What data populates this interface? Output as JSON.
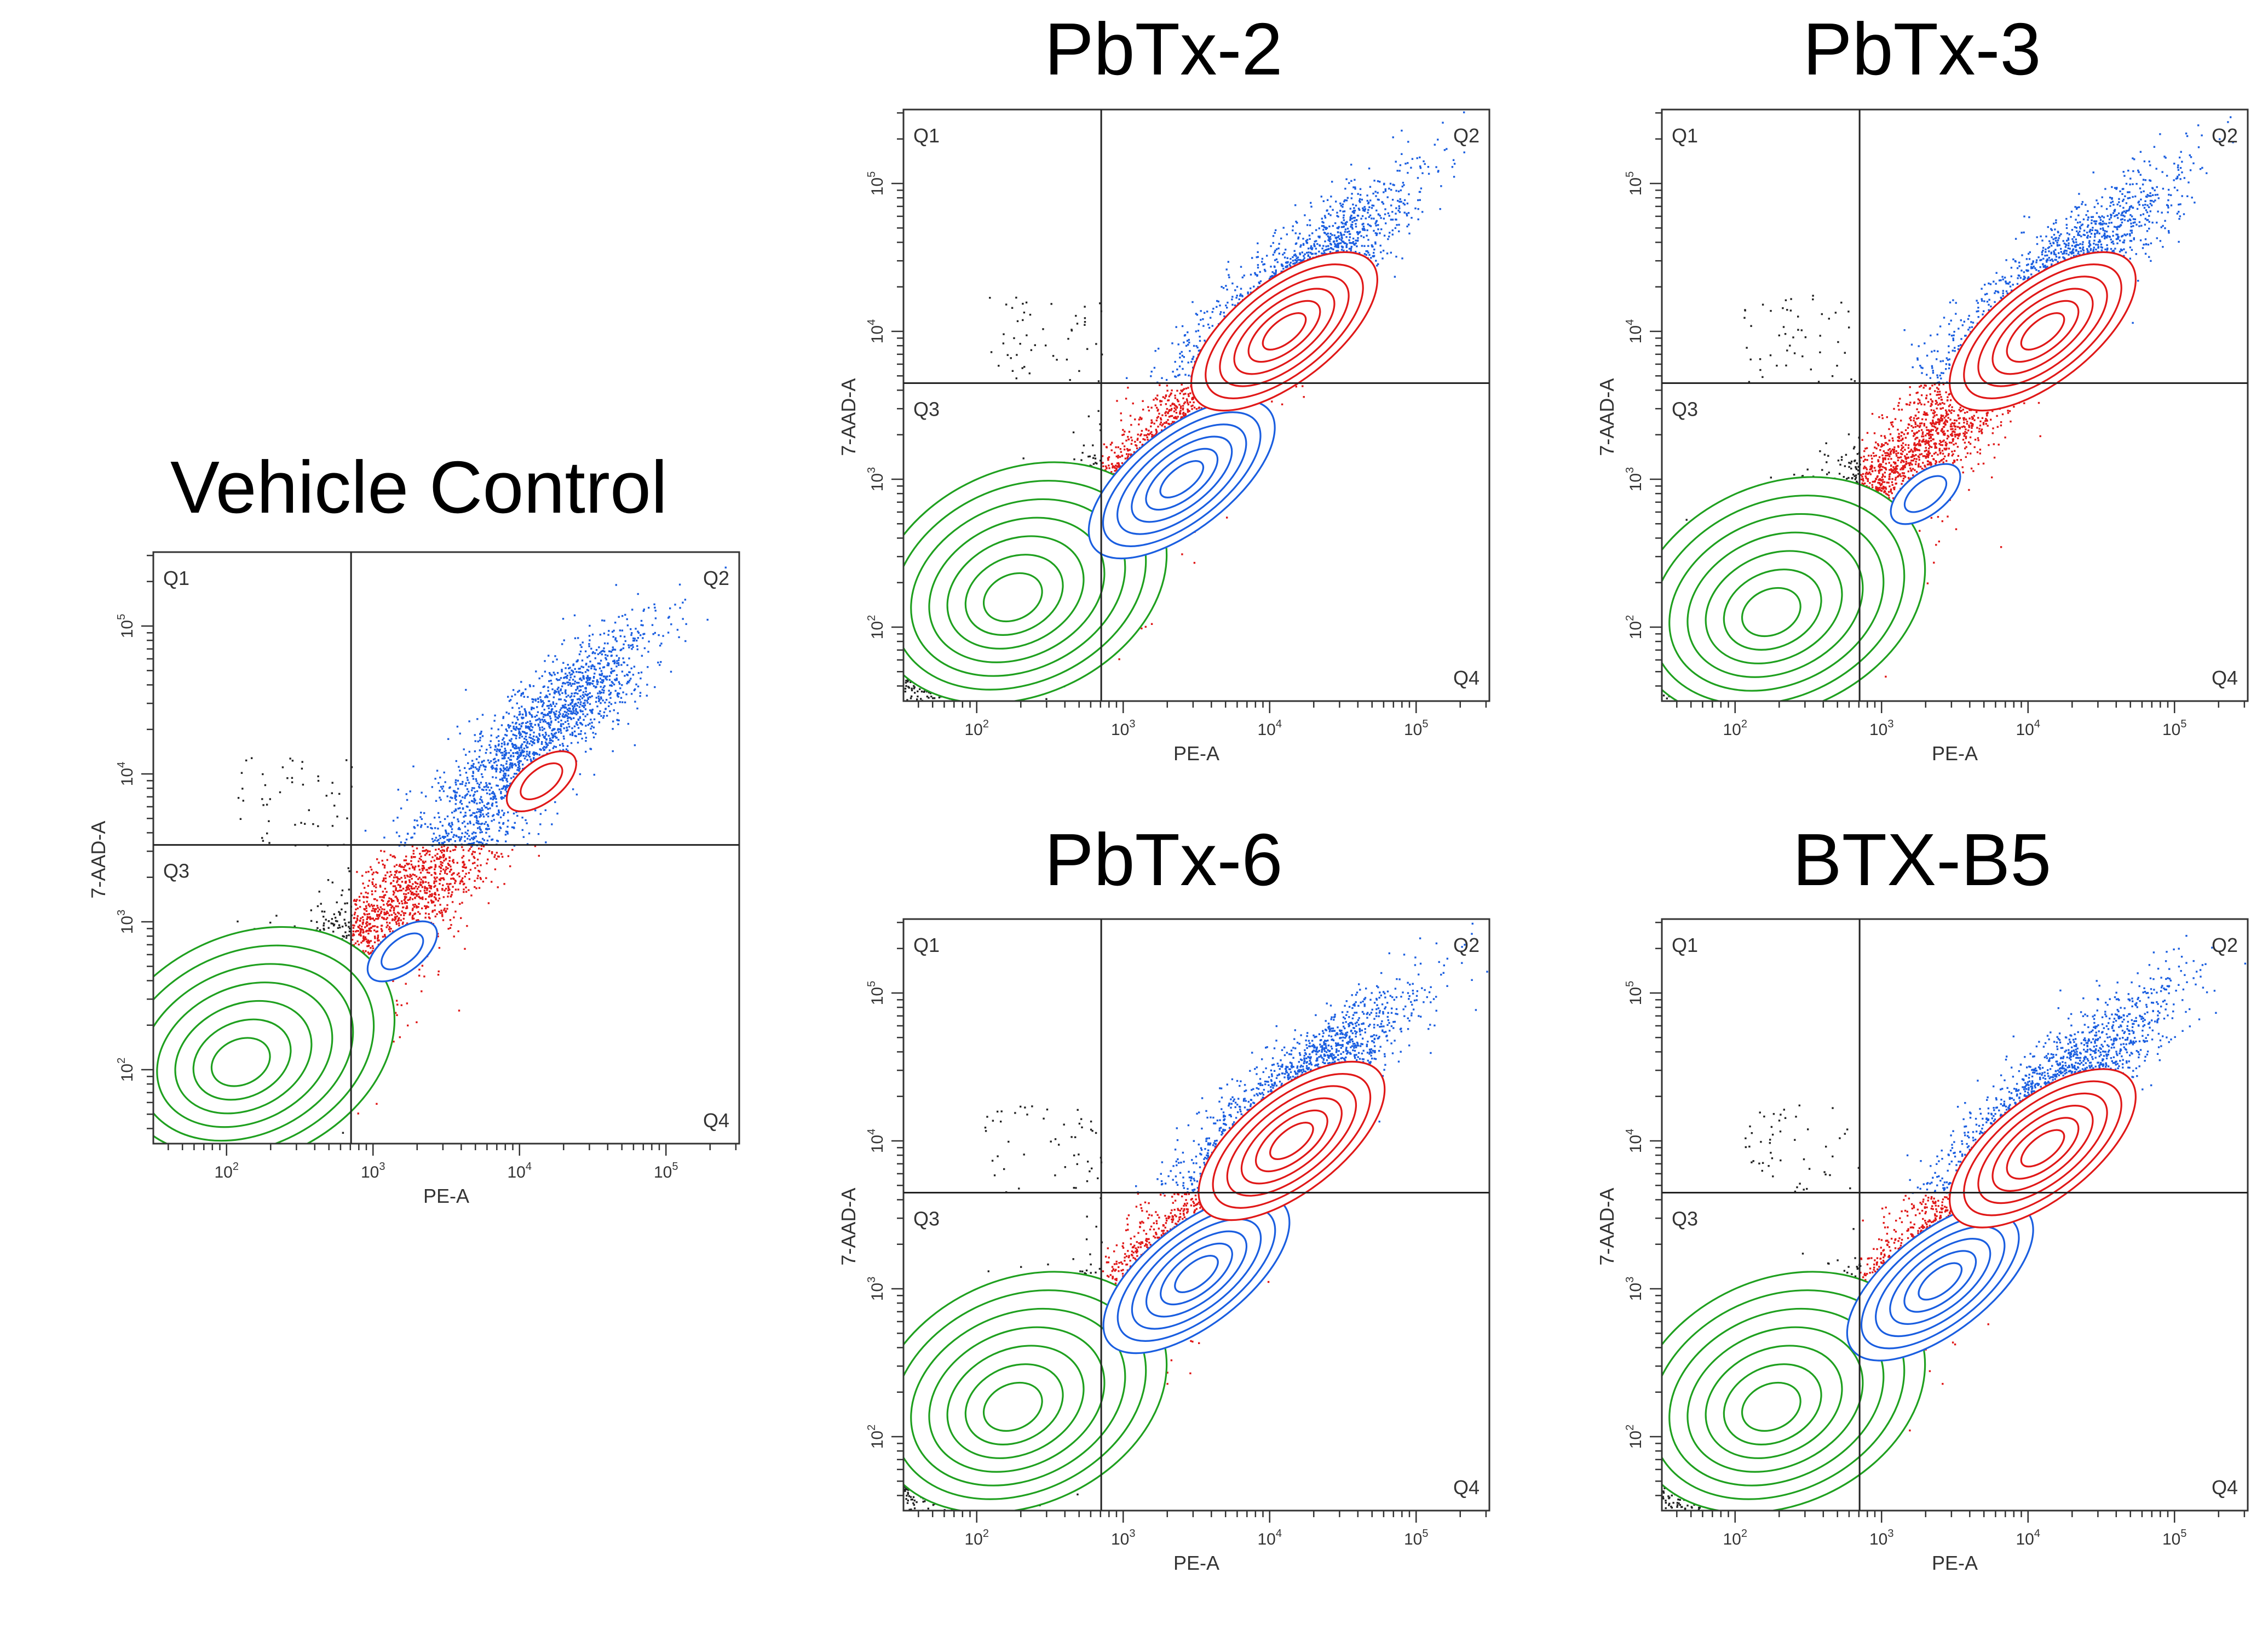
{
  "chart_data": [
    {
      "id": "vehicle-control",
      "type": "scatter",
      "title": "Vehicle Control",
      "xlabel": "PE-A",
      "ylabel": "7-AAD-A",
      "axis_scale": "log",
      "xlim_log10": [
        1.5,
        5.5
      ],
      "ylim_log10": [
        1.5,
        5.5
      ],
      "x_ticks": [
        "10",
        "10",
        "10",
        "10"
      ],
      "x_tick_exponents": [
        "2",
        "3",
        "4",
        "5"
      ],
      "y_ticks": [
        "10",
        "10",
        "10",
        "10"
      ],
      "y_tick_exponents": [
        "2",
        "3",
        "4",
        "5"
      ],
      "gate_log10": {
        "x": 2.85,
        "y": 3.52
      },
      "quadrants": [
        "Q1",
        "Q2",
        "Q3",
        "Q4"
      ],
      "populations": [
        {
          "name": "Q3",
          "color": "#1fa01f",
          "center_log10": [
            2.15,
            2.15
          ],
          "level": "large"
        },
        {
          "name": "Q4",
          "color": "#1a5ee0",
          "center_log10": [
            3.2,
            2.8
          ],
          "level": "small"
        },
        {
          "name": "Q2",
          "color": "#e01818",
          "center_log10": [
            4.15,
            3.95
          ],
          "level": "medium"
        }
      ]
    },
    {
      "id": "pbtx-2",
      "type": "scatter",
      "title": "PbTx-2",
      "xlabel": "PE-A",
      "ylabel": "7-AAD-A",
      "axis_scale": "log",
      "xlim_log10": [
        1.5,
        5.5
      ],
      "ylim_log10": [
        1.5,
        5.5
      ],
      "x_ticks": [
        "10",
        "10",
        "10",
        "10"
      ],
      "x_tick_exponents": [
        "2",
        "3",
        "4",
        "5"
      ],
      "y_ticks": [
        "10",
        "10",
        "10",
        "10"
      ],
      "y_tick_exponents": [
        "2",
        "3",
        "4",
        "5"
      ],
      "gate_log10": {
        "x": 2.85,
        "y": 3.65
      },
      "quadrants": [
        "Q1",
        "Q2",
        "Q3",
        "Q4"
      ],
      "populations": [
        {
          "name": "Q3",
          "color": "#1fa01f",
          "center_log10": [
            2.3,
            2.3
          ],
          "level": "large"
        },
        {
          "name": "Q4",
          "color": "#1a5ee0",
          "center_log10": [
            3.4,
            3.0
          ],
          "level": "large"
        },
        {
          "name": "Q2",
          "color": "#e01818",
          "center_log10": [
            4.1,
            4.0
          ],
          "level": "large"
        }
      ]
    },
    {
      "id": "pbtx-3",
      "type": "scatter",
      "title": "PbTx-3",
      "xlabel": "PE-A",
      "ylabel": "7-AAD-A",
      "axis_scale": "log",
      "xlim_log10": [
        1.5,
        5.5
      ],
      "ylim_log10": [
        1.5,
        5.5
      ],
      "x_ticks": [
        "10",
        "10",
        "10",
        "10"
      ],
      "x_tick_exponents": [
        "2",
        "3",
        "4",
        "5"
      ],
      "y_ticks": [
        "10",
        "10",
        "10",
        "10"
      ],
      "y_tick_exponents": [
        "2",
        "3",
        "4",
        "5"
      ],
      "gate_log10": {
        "x": 2.85,
        "y": 3.65
      },
      "quadrants": [
        "Q1",
        "Q2",
        "Q3",
        "Q4"
      ],
      "populations": [
        {
          "name": "Q3",
          "color": "#1fa01f",
          "center_log10": [
            2.3,
            2.2
          ],
          "level": "large"
        },
        {
          "name": "Q4",
          "color": "#1a5ee0",
          "center_log10": [
            3.3,
            2.9
          ],
          "level": "small"
        },
        {
          "name": "Q2",
          "color": "#e01818",
          "center_log10": [
            4.1,
            4.0
          ],
          "level": "large"
        }
      ]
    },
    {
      "id": "pbtx-6",
      "type": "scatter",
      "title": "PbTx-6",
      "xlabel": "PE-A",
      "ylabel": "7-AAD-A",
      "axis_scale": "log",
      "xlim_log10": [
        1.5,
        5.5
      ],
      "ylim_log10": [
        1.5,
        5.5
      ],
      "x_ticks": [
        "10",
        "10",
        "10",
        "10"
      ],
      "x_tick_exponents": [
        "2",
        "3",
        "4",
        "5"
      ],
      "y_ticks": [
        "10",
        "10",
        "10",
        "10"
      ],
      "y_tick_exponents": [
        "2",
        "3",
        "4",
        "5"
      ],
      "gate_log10": {
        "x": 2.85,
        "y": 3.65
      },
      "quadrants": [
        "Q1",
        "Q2",
        "Q3",
        "Q4"
      ],
      "populations": [
        {
          "name": "Q3",
          "color": "#1fa01f",
          "center_log10": [
            2.3,
            2.3
          ],
          "level": "large"
        },
        {
          "name": "Q4",
          "color": "#1a5ee0",
          "center_log10": [
            3.5,
            3.1
          ],
          "level": "large"
        },
        {
          "name": "Q2",
          "color": "#e01818",
          "center_log10": [
            4.15,
            4.0
          ],
          "level": "large"
        }
      ]
    },
    {
      "id": "btx-b5",
      "type": "scatter",
      "title": "BTX-B5",
      "xlabel": "PE-A",
      "ylabel": "7-AAD-A",
      "axis_scale": "log",
      "xlim_log10": [
        1.5,
        5.5
      ],
      "ylim_log10": [
        1.5,
        5.5
      ],
      "x_ticks": [
        "10",
        "10",
        "10",
        "10"
      ],
      "x_tick_exponents": [
        "2",
        "3",
        "4",
        "5"
      ],
      "y_ticks": [
        "10",
        "10",
        "10",
        "10"
      ],
      "y_tick_exponents": [
        "2",
        "3",
        "4",
        "5"
      ],
      "gate_log10": {
        "x": 2.85,
        "y": 3.65
      },
      "quadrants": [
        "Q1",
        "Q2",
        "Q3",
        "Q4"
      ],
      "populations": [
        {
          "name": "Q3",
          "color": "#1fa01f",
          "center_log10": [
            2.3,
            2.3
          ],
          "level": "large"
        },
        {
          "name": "Q4",
          "color": "#1a5ee0",
          "center_log10": [
            3.4,
            3.05
          ],
          "level": "large"
        },
        {
          "name": "Q2",
          "color": "#e01818",
          "center_log10": [
            4.1,
            3.95
          ],
          "level": "large"
        }
      ]
    }
  ]
}
